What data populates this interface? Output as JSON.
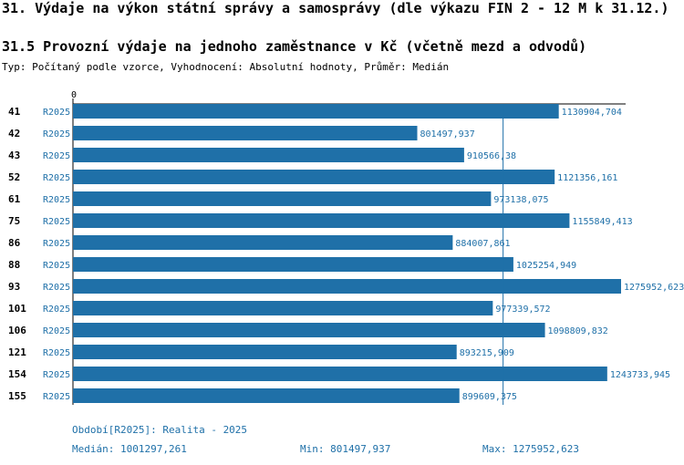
{
  "header": {
    "title": "31. Výdaje na výkon státní správy a samosprávy (dle výkazu FIN 2 - 12 M k 31.12.)",
    "subtitle": "31.5 Provozní výdaje na jednoho zaměstnance v Kč (včetně mezd a odvodů)",
    "meta": "Typ: Počítaný podle vzorce, Vyhodnocení: Absolutní hodnoty, Průměr: Medián"
  },
  "colors": {
    "bar": "#1f70a8",
    "text": "#1f70a8",
    "axis": "#000000"
  },
  "chart_data": {
    "type": "bar",
    "orientation": "horizontal",
    "axis_zero_label": "0",
    "xlim": [
      0,
      1275952.623
    ],
    "median": 1001297.261,
    "rows": [
      {
        "id": "41",
        "series": "R2025",
        "value": 1130904.704,
        "label": "1130904,704"
      },
      {
        "id": "42",
        "series": "R2025",
        "value": 801497.937,
        "label": "801497,937"
      },
      {
        "id": "43",
        "series": "R2025",
        "value": 910566.38,
        "label": "910566,38"
      },
      {
        "id": "52",
        "series": "R2025",
        "value": 1121356.161,
        "label": "1121356,161"
      },
      {
        "id": "61",
        "series": "R2025",
        "value": 973138.075,
        "label": "973138,075"
      },
      {
        "id": "75",
        "series": "R2025",
        "value": 1155849.413,
        "label": "1155849,413"
      },
      {
        "id": "86",
        "series": "R2025",
        "value": 884007.861,
        "label": "884007,861"
      },
      {
        "id": "88",
        "series": "R2025",
        "value": 1025254.949,
        "label": "1025254,949"
      },
      {
        "id": "93",
        "series": "R2025",
        "value": 1275952.623,
        "label": "1275952,623"
      },
      {
        "id": "101",
        "series": "R2025",
        "value": 977339.572,
        "label": "977339,572"
      },
      {
        "id": "106",
        "series": "R2025",
        "value": 1098809.832,
        "label": "1098809,832"
      },
      {
        "id": "121",
        "series": "R2025",
        "value": 893215.909,
        "label": "893215,909"
      },
      {
        "id": "154",
        "series": "R2025",
        "value": 1243733.945,
        "label": "1243733,945"
      },
      {
        "id": "155",
        "series": "R2025",
        "value": 899609.375,
        "label": "899609,375"
      }
    ]
  },
  "footer": {
    "period": "Období[R2025]: Realita - 2025",
    "median": "Medián: 1001297,261",
    "min": "Min: 801497,937",
    "max": "Max: 1275952,623"
  }
}
